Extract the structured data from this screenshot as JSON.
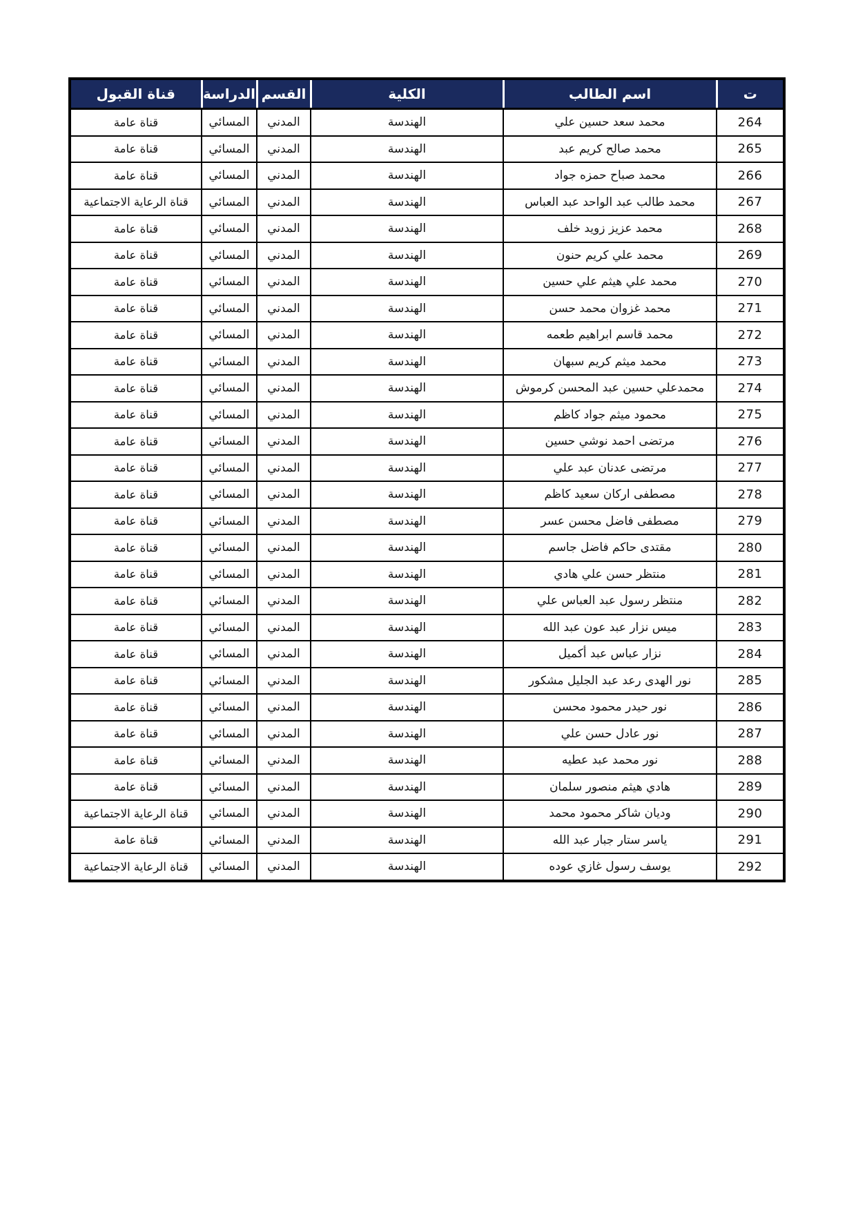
{
  "colors": {
    "header_bg": "#1a2a5e",
    "header_text": "#ffffff",
    "border": "#000000",
    "body_text": "#141414",
    "page_bg": "#ffffff"
  },
  "table": {
    "columns": [
      {
        "key": "id",
        "label": "ت"
      },
      {
        "key": "name",
        "label": "اسم الطالب"
      },
      {
        "key": "college",
        "label": "الكلية"
      },
      {
        "key": "dept",
        "label": "القسم"
      },
      {
        "key": "study",
        "label": "الدراسة"
      },
      {
        "key": "channel",
        "label": "قناة القبول"
      }
    ],
    "rows": [
      {
        "id": "264",
        "name": "محمد سعد حسين علي",
        "college": "الهندسة",
        "dept": "المدني",
        "study": "المسائي",
        "channel": "قناة عامة"
      },
      {
        "id": "265",
        "name": "محمد صالح كريم عبد",
        "college": "الهندسة",
        "dept": "المدني",
        "study": "المسائي",
        "channel": "قناة عامة"
      },
      {
        "id": "266",
        "name": "محمد صباح حمزه جواد",
        "college": "الهندسة",
        "dept": "المدني",
        "study": "المسائي",
        "channel": "قناة عامة"
      },
      {
        "id": "267",
        "name": "محمد طالب عبد الواحد عبد العباس",
        "college": "الهندسة",
        "dept": "المدني",
        "study": "المسائي",
        "channel": "قناة الرعاية الاجتماعية"
      },
      {
        "id": "268",
        "name": "محمد عزيز زويد خلف",
        "college": "الهندسة",
        "dept": "المدني",
        "study": "المسائي",
        "channel": "قناة عامة"
      },
      {
        "id": "269",
        "name": "محمد علي كريم حنون",
        "college": "الهندسة",
        "dept": "المدني",
        "study": "المسائي",
        "channel": "قناة عامة"
      },
      {
        "id": "270",
        "name": "محمد علي هيثم علي حسين",
        "college": "الهندسة",
        "dept": "المدني",
        "study": "المسائي",
        "channel": "قناة عامة"
      },
      {
        "id": "271",
        "name": "محمد غزوان محمد حسن",
        "college": "الهندسة",
        "dept": "المدني",
        "study": "المسائي",
        "channel": "قناة عامة"
      },
      {
        "id": "272",
        "name": "محمد قاسم ابراهيم طعمه",
        "college": "الهندسة",
        "dept": "المدني",
        "study": "المسائي",
        "channel": "قناة عامة"
      },
      {
        "id": "273",
        "name": "محمد ميثم كريم سبهان",
        "college": "الهندسة",
        "dept": "المدني",
        "study": "المسائي",
        "channel": "قناة عامة"
      },
      {
        "id": "274",
        "name": "محمدعلي حسين عبد المحسن كرموش",
        "college": "الهندسة",
        "dept": "المدني",
        "study": "المسائي",
        "channel": "قناة عامة"
      },
      {
        "id": "275",
        "name": "محمود ميثم جواد كاظم",
        "college": "الهندسة",
        "dept": "المدني",
        "study": "المسائي",
        "channel": "قناة عامة"
      },
      {
        "id": "276",
        "name": "مرتضى احمد نوشي حسين",
        "college": "الهندسة",
        "dept": "المدني",
        "study": "المسائي",
        "channel": "قناة عامة"
      },
      {
        "id": "277",
        "name": "مرتضى عدنان عبد علي",
        "college": "الهندسة",
        "dept": "المدني",
        "study": "المسائي",
        "channel": "قناة عامة"
      },
      {
        "id": "278",
        "name": "مصطفى اركان سعيد كاظم",
        "college": "الهندسة",
        "dept": "المدني",
        "study": "المسائي",
        "channel": "قناة عامة"
      },
      {
        "id": "279",
        "name": "مصطفى فاضل محسن عسر",
        "college": "الهندسة",
        "dept": "المدني",
        "study": "المسائي",
        "channel": "قناة عامة"
      },
      {
        "id": "280",
        "name": "مقتدى حاكم فاضل جاسم",
        "college": "الهندسة",
        "dept": "المدني",
        "study": "المسائي",
        "channel": "قناة عامة"
      },
      {
        "id": "281",
        "name": "منتظر حسن علي هادي",
        "college": "الهندسة",
        "dept": "المدني",
        "study": "المسائي",
        "channel": "قناة عامة"
      },
      {
        "id": "282",
        "name": "منتظر رسول عبد العباس علي",
        "college": "الهندسة",
        "dept": "المدني",
        "study": "المسائي",
        "channel": "قناة عامة"
      },
      {
        "id": "283",
        "name": "ميس نزار عبد عون عبد الله",
        "college": "الهندسة",
        "dept": "المدني",
        "study": "المسائي",
        "channel": "قناة عامة"
      },
      {
        "id": "284",
        "name": "نزار عباس عبد أكميل",
        "college": "الهندسة",
        "dept": "المدني",
        "study": "المسائي",
        "channel": "قناة عامة"
      },
      {
        "id": "285",
        "name": "نور الهدى رعد عبد الجليل مشكور",
        "college": "الهندسة",
        "dept": "المدني",
        "study": "المسائي",
        "channel": "قناة عامة"
      },
      {
        "id": "286",
        "name": "نور حيدر محمود محسن",
        "college": "الهندسة",
        "dept": "المدني",
        "study": "المسائي",
        "channel": "قناة عامة"
      },
      {
        "id": "287",
        "name": "نور عادل حسن علي",
        "college": "الهندسة",
        "dept": "المدني",
        "study": "المسائي",
        "channel": "قناة عامة"
      },
      {
        "id": "288",
        "name": "نور محمد عبد عطيه",
        "college": "الهندسة",
        "dept": "المدني",
        "study": "المسائي",
        "channel": "قناة عامة"
      },
      {
        "id": "289",
        "name": "هادي هيثم منصور سلمان",
        "college": "الهندسة",
        "dept": "المدني",
        "study": "المسائي",
        "channel": "قناة عامة"
      },
      {
        "id": "290",
        "name": "وديان شاكر محمود محمد",
        "college": "الهندسة",
        "dept": "المدني",
        "study": "المسائي",
        "channel": "قناة الرعاية الاجتماعية"
      },
      {
        "id": "291",
        "name": "ياسر ستار جبار عبد الله",
        "college": "الهندسة",
        "dept": "المدني",
        "study": "المسائي",
        "channel": "قناة عامة"
      },
      {
        "id": "292",
        "name": "يوسف رسول غازي عوده",
        "college": "الهندسة",
        "dept": "المدني",
        "study": "المسائي",
        "channel": "قناة الرعاية الاجتماعية"
      }
    ]
  }
}
